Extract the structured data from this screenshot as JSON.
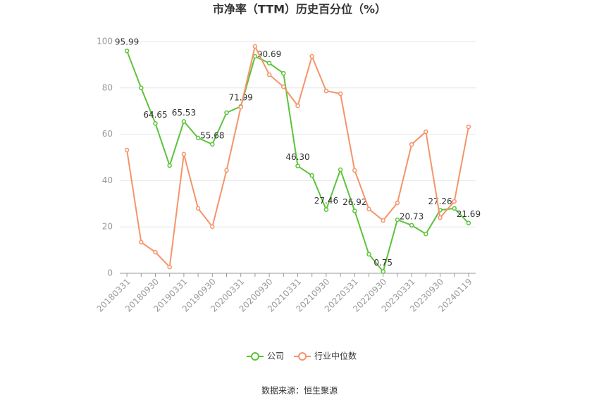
{
  "chart_data": {
    "type": "line",
    "title": "市净率（TTM）历史百分位（%）",
    "categories": [
      "20180331",
      null,
      "20180930",
      null,
      "20190331",
      null,
      "20190930",
      null,
      "20200331",
      null,
      "20200930",
      null,
      "20210331",
      null,
      "20210930",
      null,
      "20220331",
      null,
      "20220930",
      null,
      "20230331",
      null,
      "20230930",
      null,
      "20240119"
    ],
    "series": [
      {
        "name": "公司",
        "color": "#5cc33a",
        "values": [
          95.99,
          80,
          64.65,
          46.5,
          65.53,
          58.4,
          55.68,
          69.3,
          71.99,
          93.6,
          90.69,
          86.3,
          46.3,
          42.2,
          27.46,
          44.7,
          26.92,
          8.2,
          0.75,
          23.1,
          20.73,
          17.0,
          27.26,
          28.0,
          21.69
        ],
        "value_labels": [
          "95.99",
          null,
          "64.65",
          null,
          "65.53",
          null,
          "55.68",
          null,
          "71.99",
          null,
          "90.69",
          null,
          "46.30",
          null,
          "27.46",
          null,
          "26.92",
          null,
          "0.75",
          null,
          "20.73",
          null,
          "27.26",
          null,
          "21.69"
        ]
      },
      {
        "name": "行业中位数",
        "color": "#f5946a",
        "values": [
          53.2,
          13.4,
          9.1,
          2.7,
          51.4,
          28.0,
          20.1,
          44.4,
          71.7,
          97.9,
          85.7,
          80.5,
          72.3,
          93.6,
          78.7,
          77.5,
          44.4,
          27.7,
          22.8,
          30.4,
          55.6,
          61.1,
          24.0,
          31.0,
          63.2
        ]
      }
    ],
    "ylim": [
      0,
      100
    ],
    "yticks": [
      0,
      20,
      40,
      60,
      80,
      100
    ],
    "grid": true,
    "legend": "bottom",
    "source": "数据来源：恒生聚源"
  }
}
